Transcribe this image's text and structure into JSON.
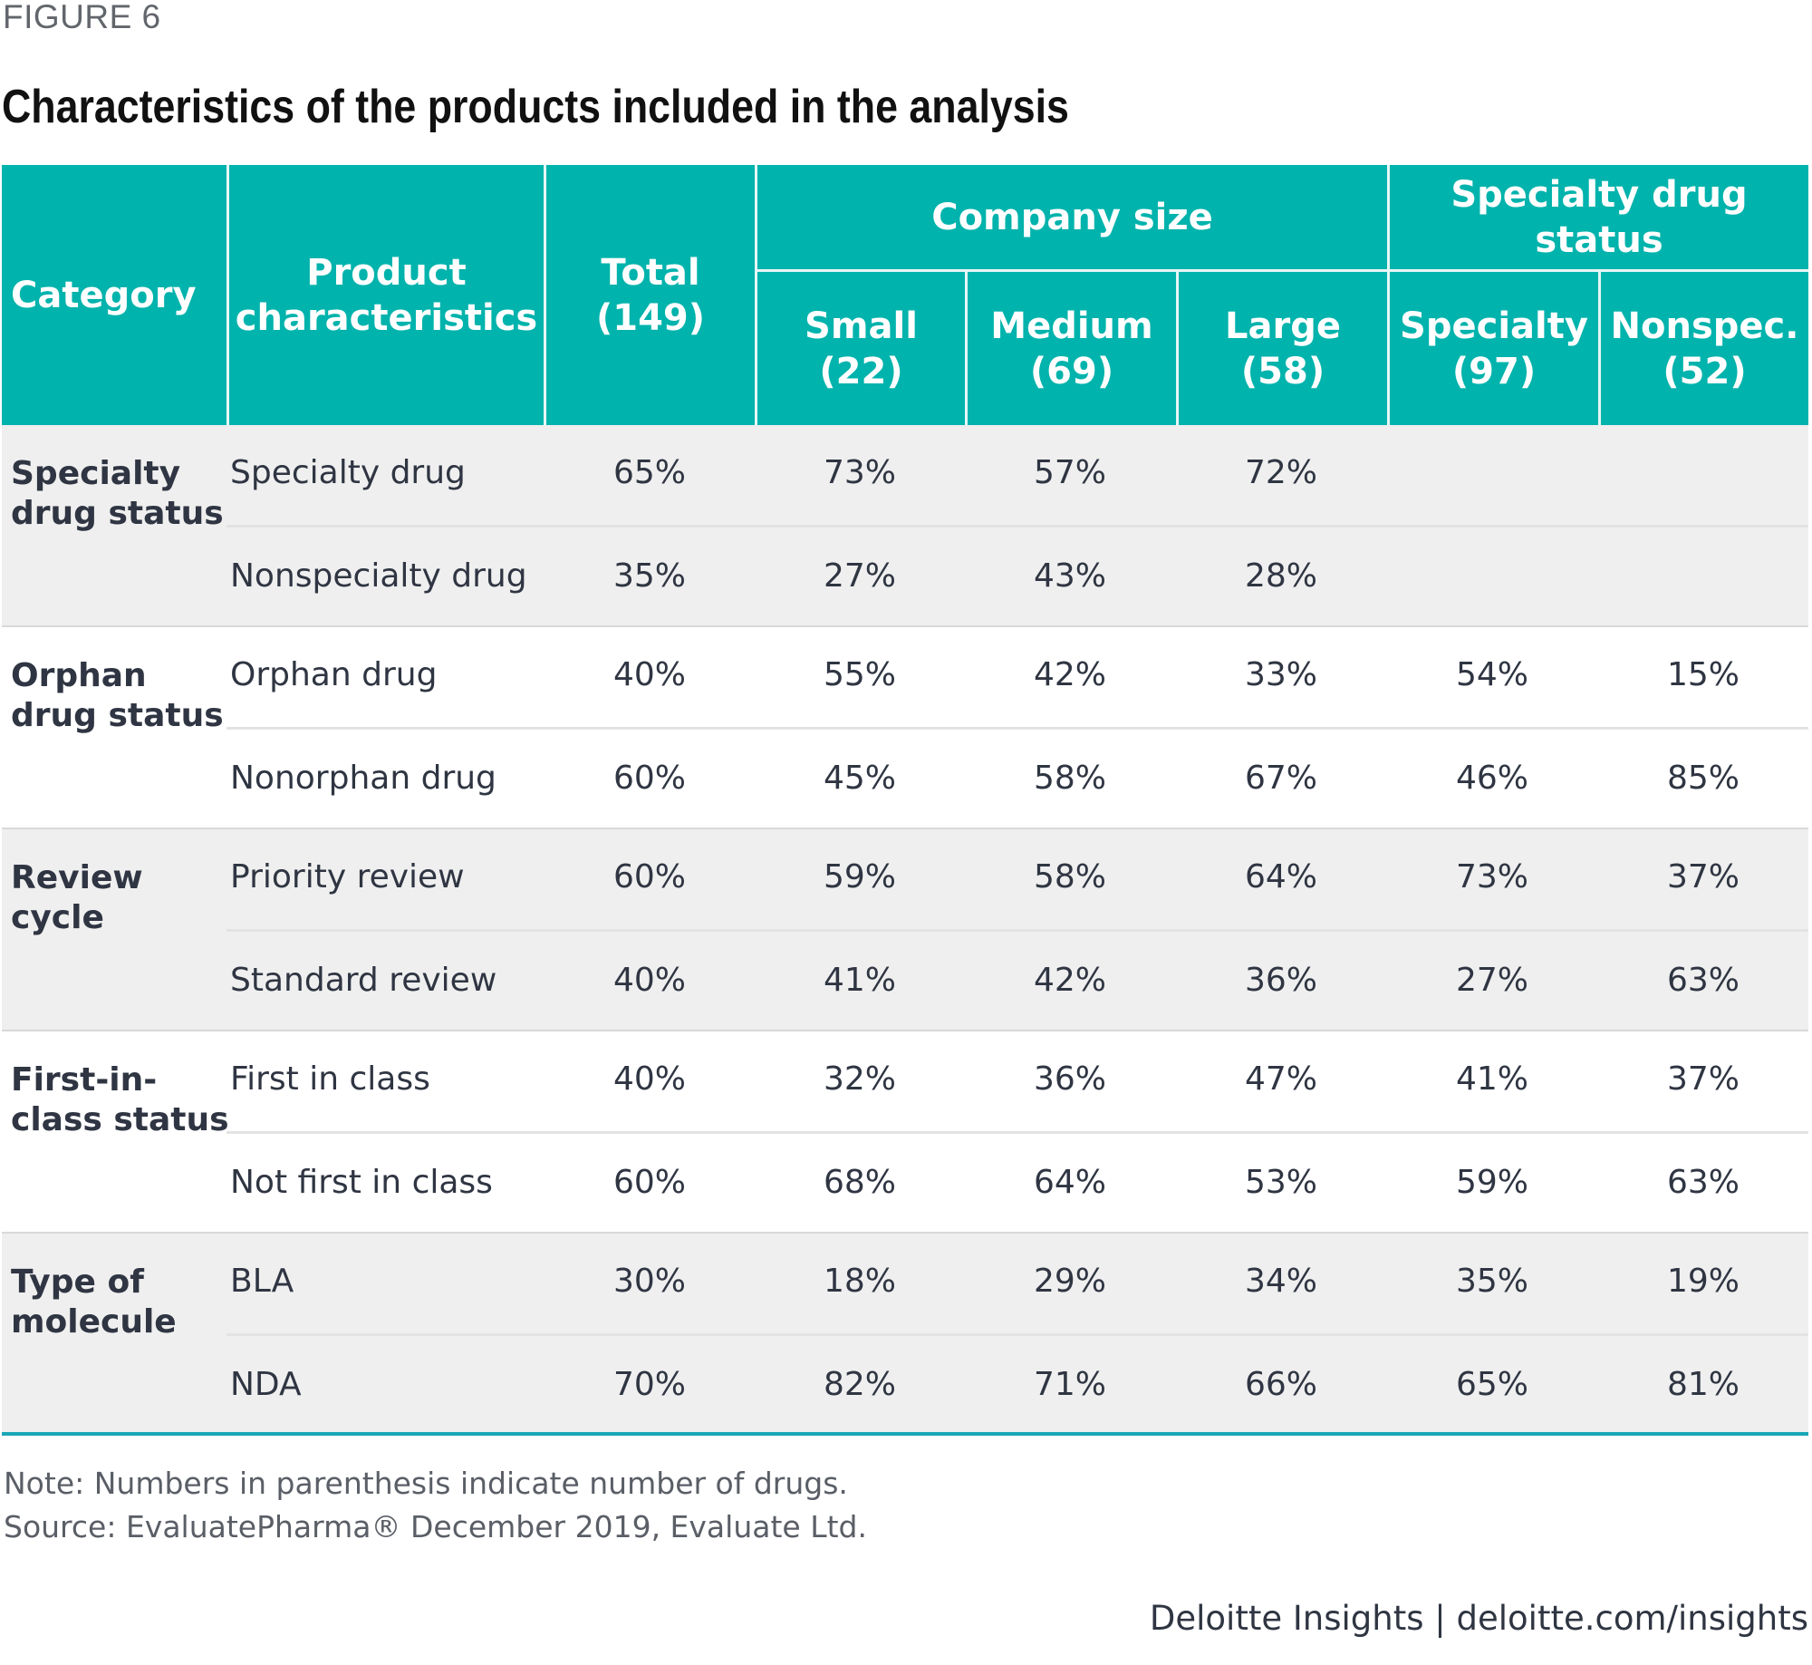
{
  "figure_label": "FIGURE 6",
  "title": "Characteristics of the products included in the analysis",
  "colors": {
    "header_bg": "#00b3ac",
    "band_gray": "#efefef",
    "accent_line": "#1aa6b7",
    "text": "#2f3542"
  },
  "header": {
    "category": "Category",
    "product_characteristics_line1": "Product",
    "product_characteristics_line2": "characteristics",
    "total_line1": "Total",
    "total_line2": "(149)",
    "company_size": "Company size",
    "specialty_drug_status": "Specialty drug status",
    "subcolumns": [
      {
        "label": "Small",
        "count": "(22)"
      },
      {
        "label": "Medium",
        "count": "(69)"
      },
      {
        "label": "Large",
        "count": "(58)"
      },
      {
        "label": "Specialty",
        "count": "(97)"
      },
      {
        "label": "Nonspec.",
        "count": "(52)"
      }
    ]
  },
  "groups": [
    {
      "category_line1": "Specialty",
      "category_line2": "drug status",
      "rows": [
        {
          "characteristic": "Specialty drug",
          "total": "65%",
          "small": "73%",
          "medium": "57%",
          "large": "72%",
          "specialty": "",
          "nonspec": ""
        },
        {
          "characteristic": "Nonspecialty drug",
          "total": "35%",
          "small": "27%",
          "medium": "43%",
          "large": "28%",
          "specialty": "",
          "nonspec": ""
        }
      ]
    },
    {
      "category_line1": "Orphan",
      "category_line2": "drug status",
      "rows": [
        {
          "characteristic": "Orphan drug",
          "total": "40%",
          "small": "55%",
          "medium": "42%",
          "large": "33%",
          "specialty": "54%",
          "nonspec": "15%"
        },
        {
          "characteristic": "Nonorphan drug",
          "total": "60%",
          "small": "45%",
          "medium": "58%",
          "large": "67%",
          "specialty": "46%",
          "nonspec": "85%"
        }
      ]
    },
    {
      "category_line1": "Review",
      "category_line2": "cycle",
      "rows": [
        {
          "characteristic": "Priority review",
          "total": "60%",
          "small": "59%",
          "medium": "58%",
          "large": "64%",
          "specialty": "73%",
          "nonspec": "37%"
        },
        {
          "characteristic": "Standard review",
          "total": "40%",
          "small": "41%",
          "medium": "42%",
          "large": "36%",
          "specialty": "27%",
          "nonspec": "63%"
        }
      ]
    },
    {
      "category_line1": "First-in-",
      "category_line2": "class status",
      "rows": [
        {
          "characteristic": "First in class",
          "total": "40%",
          "small": "32%",
          "medium": "36%",
          "large": "47%",
          "specialty": "41%",
          "nonspec": "37%"
        },
        {
          "characteristic": "Not first in class",
          "total": "60%",
          "small": "68%",
          "medium": "64%",
          "large": "53%",
          "specialty": "59%",
          "nonspec": "63%"
        }
      ]
    },
    {
      "category_line1": "Type of",
      "category_line2": "molecule",
      "rows": [
        {
          "characteristic": "BLA",
          "total": "30%",
          "small": "18%",
          "medium": "29%",
          "large": "34%",
          "specialty": "35%",
          "nonspec": "19%"
        },
        {
          "characteristic": "NDA",
          "total": "70%",
          "small": "82%",
          "medium": "71%",
          "large": "66%",
          "specialty": "65%",
          "nonspec": "81%"
        }
      ]
    }
  ],
  "note": "Note: Numbers in parenthesis indicate number of drugs.",
  "source": "Source: EvaluatePharma® December 2019, Evaluate Ltd.",
  "footer": "Deloitte Insights | deloitte.com/insights"
}
